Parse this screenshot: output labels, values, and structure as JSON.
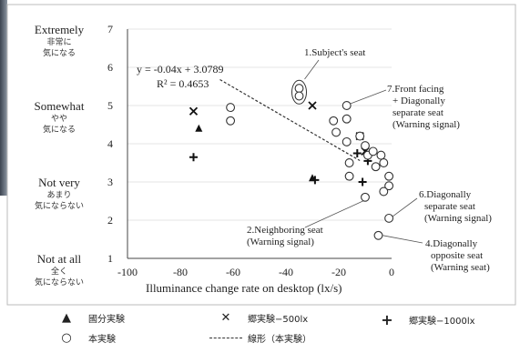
{
  "chart_data": {
    "type": "scatter",
    "xlabel": "Illuminance change rate on desktop (lx/s)",
    "xlim": [
      -100,
      0
    ],
    "ylim": [
      1,
      7
    ],
    "x_ticks": [
      "-100",
      "-80",
      "-60",
      "-40",
      "-20",
      "0"
    ],
    "y_ticks": [
      "1",
      "2",
      "3",
      "4",
      "5",
      "6",
      "7"
    ],
    "y_bands": [
      {
        "value": 7,
        "en": "Extremely",
        "ja1": "非常に",
        "ja2": "気になる"
      },
      {
        "value": 5,
        "en": "Somewhat",
        "ja1": "やや",
        "ja2": "気になる"
      },
      {
        "value": 3,
        "en": "Not very",
        "ja1": "あまり",
        "ja2": "気にならない"
      },
      {
        "value": 1,
        "en": "Not at all",
        "ja1": "全く",
        "ja2": "気にならない"
      }
    ],
    "regression": {
      "slope": -0.04,
      "intercept": 3.0789,
      "equation": "y = -0.04x + 3.0789",
      "r2": "R² = 0.4653"
    },
    "series": [
      {
        "name": "國分実験",
        "marker": "triangle",
        "points": [
          [
            -73,
            4.4
          ],
          [
            -30,
            3.1
          ]
        ]
      },
      {
        "name": "郷実験−500lx",
        "marker": "x",
        "points": [
          [
            -75,
            4.85
          ],
          [
            -30,
            5.0
          ],
          [
            -12,
            4.2
          ],
          [
            -10,
            3.8
          ]
        ]
      },
      {
        "name": "郷実験−1000lx",
        "marker": "plus",
        "points": [
          [
            -75,
            3.65
          ],
          [
            -29,
            3.05
          ],
          [
            -13,
            3.75
          ],
          [
            -11,
            3.0
          ],
          [
            -9,
            3.55
          ]
        ]
      },
      {
        "name": "本実験",
        "marker": "circle",
        "points": [
          [
            -35,
            5.45
          ],
          [
            -35,
            5.25
          ],
          [
            -61,
            4.95
          ],
          [
            -61,
            4.6
          ],
          [
            -22,
            4.6
          ],
          [
            -21,
            4.3
          ],
          [
            -17,
            5.0
          ],
          [
            -17,
            4.65
          ],
          [
            -17,
            4.05
          ],
          [
            -12,
            4.2
          ],
          [
            -10,
            3.95
          ],
          [
            -9,
            3.7
          ],
          [
            -7,
            3.8
          ],
          [
            -6,
            3.4
          ],
          [
            -16,
            3.5
          ],
          [
            -16,
            3.15
          ],
          [
            -4,
            3.7
          ],
          [
            -3,
            3.5
          ],
          [
            -1,
            3.15
          ],
          [
            -1,
            2.9
          ],
          [
            -3,
            2.75
          ],
          [
            -10,
            2.6
          ],
          [
            -1,
            2.05
          ],
          [
            -5,
            1.6
          ]
        ]
      }
    ],
    "annotations": [
      {
        "lines": [
          "1.Subject's seat"
        ]
      },
      {
        "lines": [
          "7.Front facing",
          "+ Diagonally",
          "separate seat",
          "(Warning signal)"
        ]
      },
      {
        "lines": [
          "6.Diagonally",
          "separate seat",
          "(Warning signal)"
        ]
      },
      {
        "lines": [
          "2.Neighboring seat",
          "(Warning signal)"
        ]
      },
      {
        "lines": [
          "4.Diagonally",
          "opposite seat",
          "(Warning seat)"
        ]
      }
    ],
    "legend": {
      "placement": "bottom",
      "items": [
        {
          "symbol": "▲",
          "label": "國分実験"
        },
        {
          "symbol": "✕",
          "label": "郷実験−500lx"
        },
        {
          "symbol": "+",
          "label": "郷実験−1000lx"
        },
        {
          "symbol": "○",
          "label": "本実験"
        },
        {
          "symbol": "dash",
          "label": "線形（本実験）"
        }
      ]
    }
  }
}
